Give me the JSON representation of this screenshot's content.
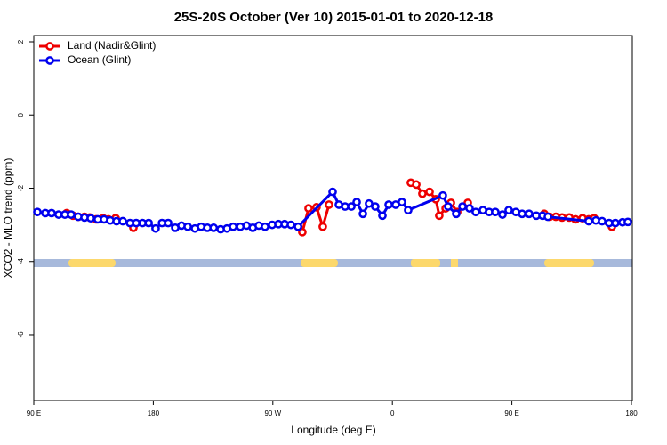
{
  "chart_data": {
    "type": "line",
    "title": "25S-20S October (Ver 10)   2015-01-01 to 2020-12-18",
    "xlabel": "Longitude (deg E)",
    "ylabel": "XCO2 - MLO trend (ppm)",
    "xlim": [
      90,
      540
    ],
    "ylim": [
      -7.8,
      2.17
    ],
    "xticks": [
      {
        "value": 90,
        "label": "90 E"
      },
      {
        "value": 180,
        "label": "180"
      },
      {
        "value": 270,
        "label": "90 W"
      },
      {
        "value": 360,
        "label": "0"
      },
      {
        "value": 450,
        "label": "90 E"
      },
      {
        "value": 540,
        "label": "180"
      }
    ],
    "yticks": [
      2,
      0,
      -2,
      -4,
      -6
    ],
    "legend": "top-left",
    "series": [
      {
        "name": "Land (Nadir&Glint)",
        "color": "#ee0000",
        "x": [
          114.8,
          119.5,
          123.5,
          128.2,
          132.2,
          136.9,
          142.2,
          146.2,
          151.6,
          null,
          165,
          null,
          292.2,
          296.9,
          302.9,
          307.6,
          312.3,
          null,
          373.9,
          378,
          382.6,
          388,
          392.7,
          395.3,
          400.1,
          404.1,
          408.8,
          416.8,
          null,
          474.4,
          478.4,
          483.1,
          487.8,
          493.2,
          497.9,
          503.2,
          507.8,
          511.9,
          525.3
        ],
        "values": [
          -2.68,
          -2.75,
          -2.78,
          -2.78,
          -2.8,
          -2.85,
          -2.82,
          -2.85,
          -2.82,
          null,
          -3.08,
          null,
          -3.2,
          -2.55,
          -2.52,
          -3.05,
          -2.45,
          null,
          -1.85,
          -1.9,
          -2.15,
          -2.1,
          -2.3,
          -2.75,
          -2.55,
          -2.4,
          -2.65,
          -2.4,
          null,
          -2.7,
          -2.78,
          -2.78,
          -2.8,
          -2.8,
          -2.85,
          -2.82,
          -2.85,
          -2.82,
          -3.05
        ]
      },
      {
        "name": "Ocean (Glint)",
        "color": "#0000ee",
        "x": [
          92.7,
          98.7,
          103.4,
          108.7,
          113.4,
          118.1,
          123.5,
          128.2,
          132.9,
          138.2,
          142.9,
          147.6,
          152.3,
          157,
          162.4,
          167.1,
          171.8,
          176.5,
          181.7,
          186.5,
          191.2,
          196.5,
          201.2,
          205.9,
          211.3,
          216,
          220.7,
          225.4,
          230.7,
          235.4,
          240.1,
          245.5,
          250.2,
          254.9,
          259.4,
          264.1,
          269.5,
          274.2,
          278.9,
          283.6,
          289,
          315,
          319.7,
          324.4,
          329.1,
          333.1,
          337.8,
          342.4,
          347.1,
          352.5,
          357.2,
          362.5,
          367.2,
          371.9,
          398,
          402,
          408.1,
          412.8,
          418.1,
          422.8,
          428.2,
          432.9,
          437.5,
          442.9,
          447.6,
          453,
          457.7,
          463,
          468.4,
          473.1,
          477.1,
          507.8,
          513.2,
          517.9,
          523.2,
          527.9,
          533.3,
          537.3
        ],
        "values": [
          -2.65,
          -2.68,
          -2.68,
          -2.72,
          -2.72,
          -2.72,
          -2.78,
          -2.8,
          -2.82,
          -2.85,
          -2.85,
          -2.88,
          -2.9,
          -2.9,
          -2.95,
          -2.95,
          -2.95,
          -2.95,
          -3.1,
          -2.95,
          -2.95,
          -3.08,
          -3.02,
          -3.05,
          -3.1,
          -3.05,
          -3.08,
          -3.08,
          -3.12,
          -3.1,
          -3.05,
          -3.05,
          -3.02,
          -3.08,
          -3.02,
          -3.05,
          -3.0,
          -2.98,
          -2.98,
          -3.0,
          -3.05,
          -2.1,
          -2.45,
          -2.5,
          -2.5,
          -2.38,
          -2.7,
          -2.42,
          -2.5,
          -2.75,
          -2.45,
          -2.45,
          -2.38,
          -2.6,
          -2.2,
          -2.5,
          -2.7,
          -2.5,
          -2.55,
          -2.65,
          -2.6,
          -2.65,
          -2.65,
          -2.72,
          -2.6,
          -2.65,
          -2.7,
          -2.7,
          -2.75,
          -2.75,
          -2.78,
          -2.9,
          -2.88,
          -2.9,
          -2.95,
          -2.95,
          -2.93,
          -2.92
        ]
      }
    ]
  }
}
